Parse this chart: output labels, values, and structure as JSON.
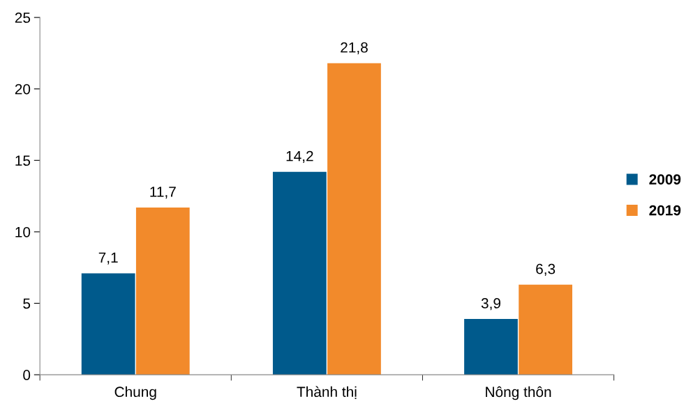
{
  "chart_data": {
    "type": "bar",
    "categories": [
      "Chung",
      "Thành thị",
      "Nông thôn"
    ],
    "series": [
      {
        "name": "2009",
        "color": "#005a8c",
        "values": [
          7.1,
          14.2,
          3.9
        ],
        "value_labels": [
          "7,1",
          "14,2",
          "3,9"
        ]
      },
      {
        "name": "2019",
        "color": "#f28a2b",
        "values": [
          11.7,
          21.8,
          6.3
        ],
        "value_labels": [
          "11,7",
          "21,8",
          "6,3"
        ]
      }
    ],
    "ylim": [
      0,
      25
    ],
    "yticks": [
      0,
      5,
      10,
      15,
      20,
      25
    ],
    "grid": false,
    "legend": "right"
  }
}
